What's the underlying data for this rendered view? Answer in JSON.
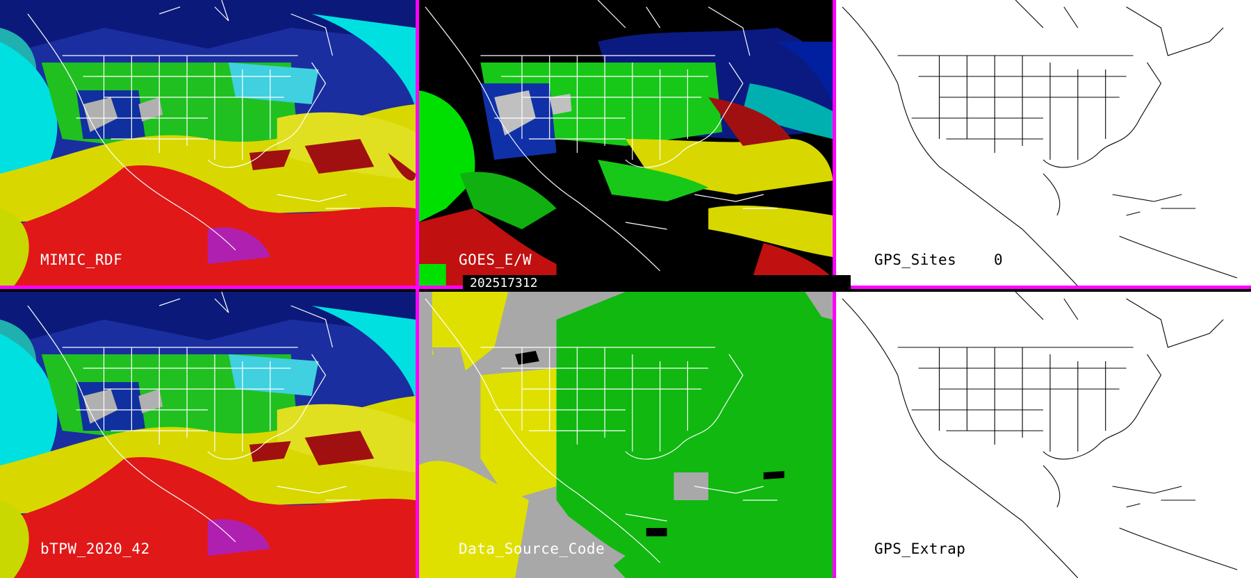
{
  "timestamp": "202517312",
  "panels": [
    {
      "id": "mimic-rdf",
      "label": "MIMIC_RDF",
      "style": "tpw"
    },
    {
      "id": "goes-ew",
      "label": "GOES_E/W",
      "style": "goes"
    },
    {
      "id": "gps-sites",
      "label": "GPS_Sites",
      "count": "0",
      "style": "white"
    },
    {
      "id": "btpw",
      "label": "bTPW_2020_42",
      "style": "tpw"
    },
    {
      "id": "data-source-code",
      "label": "Data_Source_Code",
      "style": "dsc"
    },
    {
      "id": "gps-extrap",
      "label": "GPS_Extrap",
      "style": "white"
    }
  ],
  "colors": {
    "divider": "#ff00ff",
    "tpw_low": "#00e0e0",
    "tpw_mid": "#00c000",
    "tpw_high": "#e0e000",
    "tpw_max": "#e01010",
    "tpw_deep": "#1020a0",
    "dsc_gray": "#a8a8a8",
    "dsc_green": "#10b810",
    "dsc_yellow": "#e0e000"
  }
}
